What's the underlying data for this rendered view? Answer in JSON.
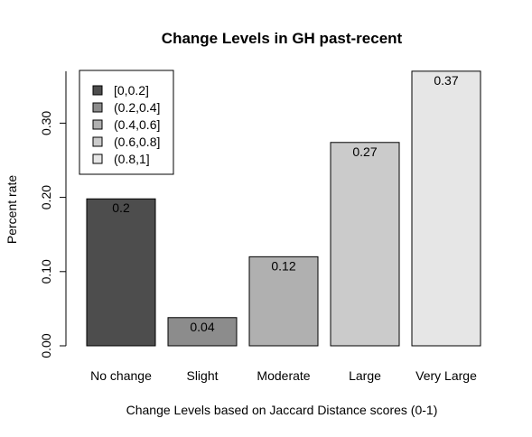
{
  "chart_data": {
    "type": "bar",
    "title": "Change Levels in GH past-recent",
    "xlabel": "Change Levels based on Jaccard Distance scores (0-1)",
    "ylabel": "Percent rate",
    "categories": [
      "No change",
      "Slight",
      "Moderate",
      "Large",
      "Very Large"
    ],
    "values": [
      0.198,
      0.038,
      0.12,
      0.274,
      0.37
    ],
    "data_labels": [
      "0.2",
      "0.04",
      "0.12",
      "0.27",
      "0.37"
    ],
    "colors": [
      "#4d4d4d",
      "#8c8c8c",
      "#b0b0b0",
      "#cbcbcb",
      "#e6e6e6"
    ],
    "y_ticks": [
      0.0,
      0.1,
      0.2,
      0.3
    ],
    "y_tick_labels": [
      "0.00",
      "0.10",
      "0.20",
      "0.30"
    ],
    "ylim": [
      0,
      0.37
    ],
    "grid": false,
    "legend": {
      "placement": "top-left",
      "entries": [
        "[0,0.2]",
        "(0.2,0.4]",
        "(0.4,0.6]",
        "(0.6,0.8]",
        "(0.8,1]"
      ]
    }
  }
}
